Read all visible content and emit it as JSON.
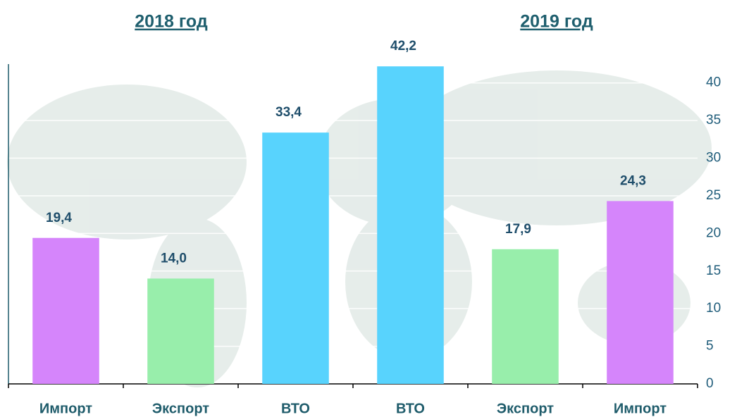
{
  "chart_data": {
    "type": "bar",
    "annotations": [
      "2018 год",
      "2019 год"
    ],
    "categories": [
      "Импорт",
      "Экспорт",
      "ВТО",
      "ВТО",
      "Экспорт",
      "Импорт"
    ],
    "values": [
      19.4,
      14.0,
      33.4,
      42.2,
      17.9,
      24.3
    ],
    "value_labels": [
      "19,4",
      "14,0",
      "33,4",
      "42,2",
      "17,9",
      "24,3"
    ],
    "colors": [
      "#d585fb",
      "#98eeab",
      "#58d3fd",
      "#58d3fd",
      "#98eeab",
      "#d585fb"
    ],
    "ylim": [
      0,
      42.5
    ],
    "yticks": [
      0,
      5,
      10,
      15,
      20,
      25,
      30,
      35,
      40
    ],
    "y_axis_side": "right",
    "grid": true
  }
}
